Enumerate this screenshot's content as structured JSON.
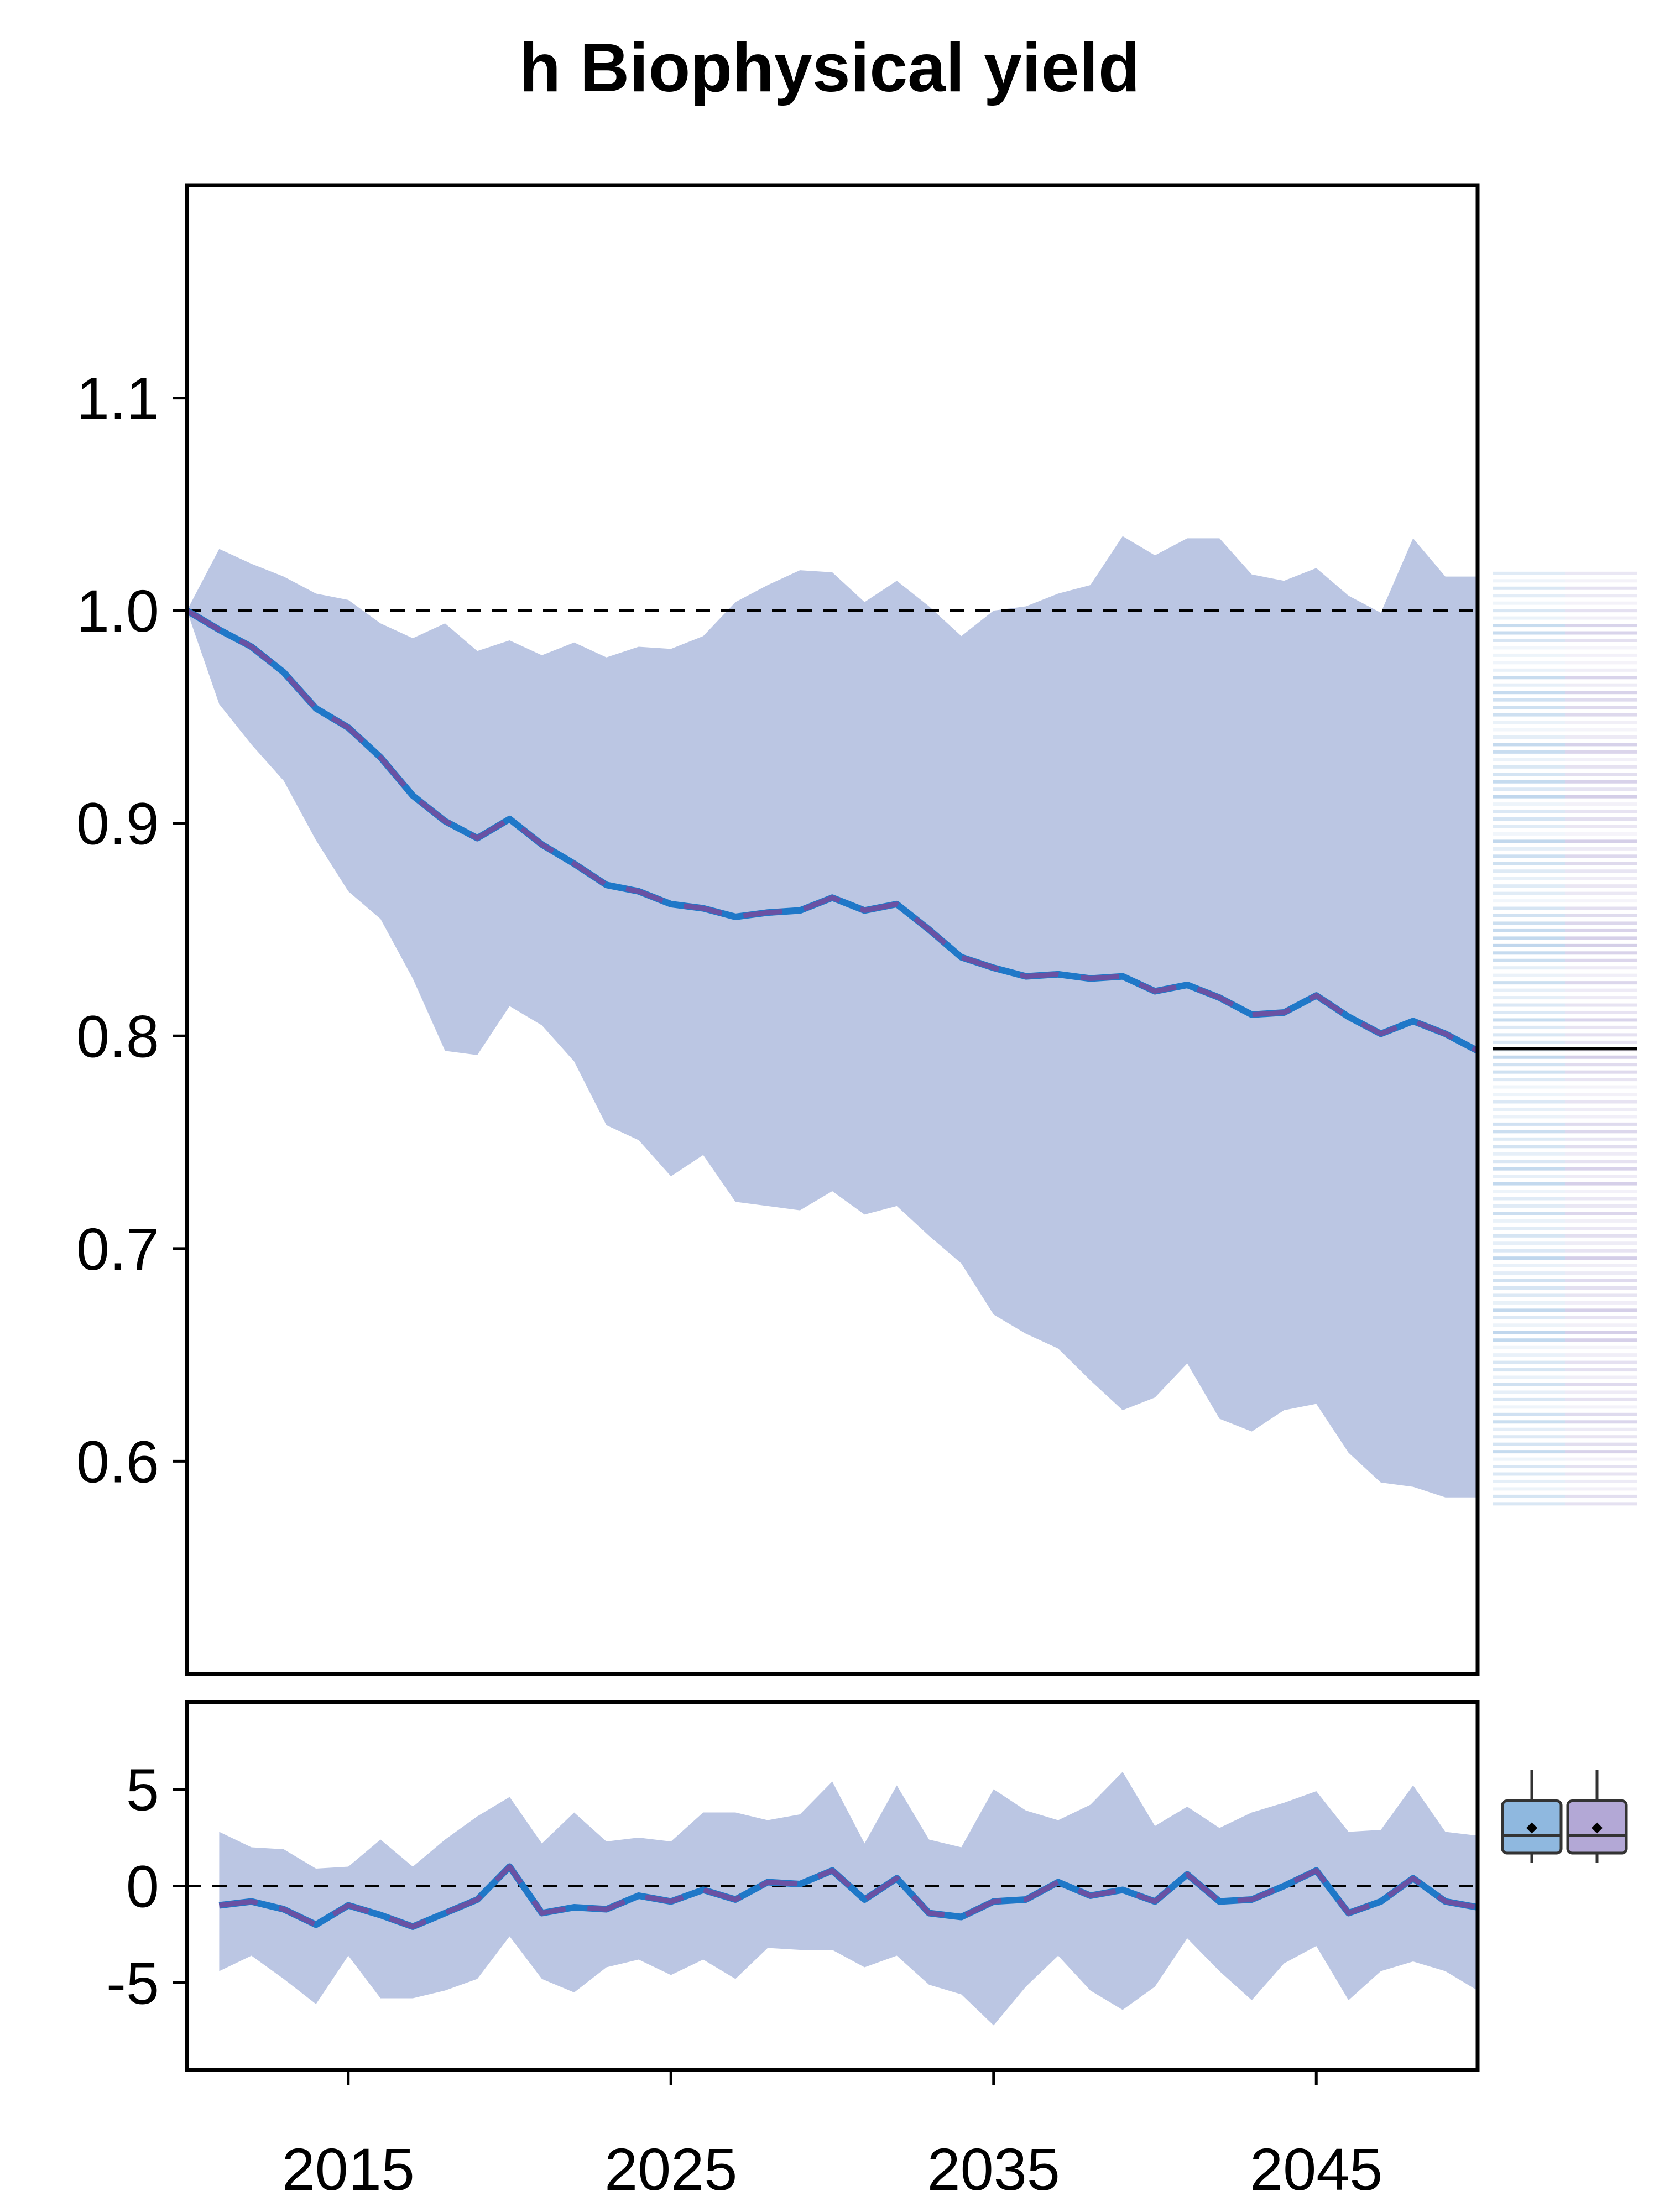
{
  "chart_data": {
    "title": "h Biophysical yield",
    "type": "line",
    "colors": {
      "band": "#bbc6e3",
      "line_blue": "#1f78c8",
      "line_purple": "#6a51a3",
      "box_blue": "#8fb8df",
      "box_purple": "#b3a8d6"
    },
    "x_ticks": [
      "2015",
      "2025",
      "2035",
      "2045"
    ],
    "xlim": [
      2010,
      2050
    ],
    "main_panel": {
      "ylim": [
        0.5,
        1.2
      ],
      "y_ticks": [
        "0.6",
        "0.7",
        "0.8",
        "0.9",
        "1.0",
        "1.1"
      ],
      "reference_line": 1.0,
      "x": [
        2010,
        2011,
        2012,
        2013,
        2014,
        2015,
        2016,
        2017,
        2018,
        2019,
        2020,
        2021,
        2022,
        2023,
        2024,
        2025,
        2026,
        2027,
        2028,
        2029,
        2030,
        2031,
        2032,
        2033,
        2034,
        2035,
        2036,
        2037,
        2038,
        2039,
        2040,
        2041,
        2042,
        2043,
        2044,
        2045,
        2046,
        2047,
        2048,
        2049,
        2050
      ],
      "mean": [
        1.0,
        0.991,
        0.983,
        0.971,
        0.954,
        0.945,
        0.931,
        0.913,
        0.901,
        0.893,
        0.902,
        0.89,
        0.881,
        0.871,
        0.868,
        0.862,
        0.86,
        0.856,
        0.858,
        0.859,
        0.865,
        0.859,
        0.862,
        0.85,
        0.837,
        0.832,
        0.828,
        0.829,
        0.827,
        0.828,
        0.821,
        0.824,
        0.818,
        0.81,
        0.811,
        0.819,
        0.809,
        0.801,
        0.807,
        0.801,
        0.793
      ],
      "upper": [
        1.0,
        1.029,
        1.022,
        1.016,
        1.008,
        1.005,
        0.994,
        0.987,
        0.994,
        0.981,
        0.986,
        0.979,
        0.985,
        0.978,
        0.983,
        0.982,
        0.988,
        1.004,
        1.012,
        1.019,
        1.018,
        1.004,
        1.014,
        1.002,
        0.988,
        1.0,
        1.002,
        1.008,
        1.012,
        1.035,
        1.026,
        1.034,
        1.034,
        1.017,
        1.014,
        1.02,
        1.007,
        0.999,
        1.034,
        1.016,
        1.016
      ],
      "lower": [
        1.0,
        0.956,
        0.937,
        0.92,
        0.892,
        0.868,
        0.855,
        0.827,
        0.793,
        0.791,
        0.814,
        0.805,
        0.788,
        0.758,
        0.751,
        0.734,
        0.744,
        0.722,
        0.72,
        0.718,
        0.727,
        0.716,
        0.72,
        0.706,
        0.693,
        0.669,
        0.66,
        0.653,
        0.638,
        0.624,
        0.63,
        0.646,
        0.62,
        0.614,
        0.624,
        0.627,
        0.604,
        0.59,
        0.588,
        0.583,
        0.583
      ],
      "strip_range": [
        0.58,
        1.018
      ],
      "strip_median": 0.794
    },
    "lower_panel": {
      "ylim": [
        -9.5,
        9.5
      ],
      "y_ticks": [
        "5",
        "0",
        "-5"
      ],
      "reference_line": 0,
      "x": [
        2011,
        2012,
        2013,
        2014,
        2015,
        2016,
        2017,
        2018,
        2019,
        2020,
        2021,
        2022,
        2023,
        2024,
        2025,
        2026,
        2027,
        2028,
        2029,
        2030,
        2031,
        2032,
        2033,
        2034,
        2035,
        2036,
        2037,
        2038,
        2039,
        2040,
        2041,
        2042,
        2043,
        2044,
        2045,
        2046,
        2047,
        2048,
        2049,
        2050
      ],
      "mean": [
        -1.0,
        -0.8,
        -1.2,
        -2.0,
        -1.0,
        -1.5,
        -2.1,
        -1.4,
        -0.7,
        1.0,
        -1.4,
        -1.1,
        -1.2,
        -0.5,
        -0.8,
        -0.2,
        -0.7,
        0.2,
        0.1,
        0.8,
        -0.7,
        0.4,
        -1.4,
        -1.6,
        -0.8,
        -0.7,
        0.2,
        -0.5,
        -0.2,
        -0.8,
        0.6,
        -0.8,
        -0.7,
        0.0,
        0.8,
        -1.4,
        -0.8,
        0.4,
        -0.8,
        -1.1
      ],
      "upper": [
        2.8,
        2.0,
        1.9,
        0.9,
        1.0,
        2.4,
        1.0,
        2.4,
        3.6,
        4.6,
        2.2,
        3.8,
        2.3,
        2.5,
        2.3,
        3.8,
        3.8,
        3.4,
        3.7,
        5.4,
        2.2,
        5.2,
        2.4,
        2.0,
        5.0,
        3.9,
        3.4,
        4.2,
        5.9,
        3.1,
        4.1,
        3.0,
        3.8,
        4.3,
        4.9,
        2.8,
        2.9,
        5.2,
        2.8,
        2.6
      ],
      "lower": [
        -4.4,
        -3.6,
        -4.8,
        -6.1,
        -3.6,
        -5.8,
        -5.8,
        -5.4,
        -4.8,
        -2.6,
        -4.8,
        -5.5,
        -4.2,
        -3.8,
        -4.6,
        -3.8,
        -4.8,
        -3.2,
        -3.3,
        -3.3,
        -4.2,
        -3.6,
        -5.1,
        -5.6,
        -7.2,
        -5.2,
        -3.6,
        -5.4,
        -6.4,
        -5.2,
        -2.7,
        -4.4,
        -5.9,
        -4.0,
        -3.1,
        -5.9,
        -4.4,
        -3.9,
        -4.4,
        -5.4
      ],
      "boxplots": [
        {
          "color": "#8fb8df",
          "q1": 1.7,
          "median": 2.6,
          "q3": 4.4,
          "whisker_low": 1.2,
          "whisker_high": 6.0,
          "mean": 3.0
        },
        {
          "color": "#b3a8d6",
          "q1": 1.7,
          "median": 2.6,
          "q3": 4.4,
          "whisker_low": 1.2,
          "whisker_high": 6.0,
          "mean": 3.0
        }
      ]
    }
  }
}
